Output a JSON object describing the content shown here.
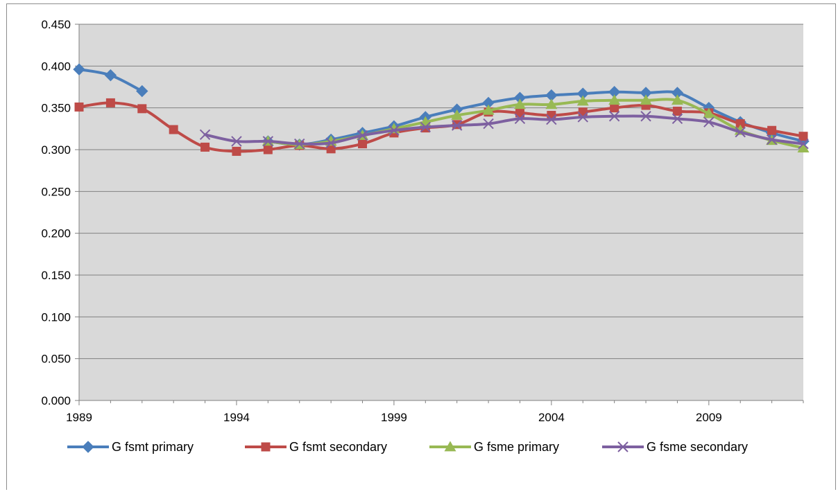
{
  "chart_data": {
    "type": "line",
    "title": "",
    "xlabel": "",
    "ylabel": "",
    "xlim": [
      1989,
      2012
    ],
    "ylim": [
      0,
      0.45
    ],
    "x_ticks": [
      "1989",
      "1994",
      "1999",
      "2004",
      "2009"
    ],
    "y_ticks": [
      "0.000",
      "0.050",
      "0.100",
      "0.150",
      "0.200",
      "0.250",
      "0.300",
      "0.350",
      "0.400",
      "0.450"
    ],
    "grid": true,
    "legend_position": "bottom",
    "plot_background": "#d9d9d9",
    "series": [
      {
        "name": "G fsmt primary",
        "color": "#4a7ebb",
        "marker": "diamond",
        "segments": [
          {
            "x": [
              1989,
              1990,
              1991
            ],
            "y": [
              0.396,
              0.389,
              0.37
            ]
          },
          {
            "x": [
              1995,
              1996,
              1997,
              1998,
              1999,
              2000,
              2001,
              2002,
              2003,
              2004,
              2005,
              2006,
              2007,
              2008,
              2009,
              2010,
              2011,
              2012
            ],
            "y": [
              0.31,
              0.306,
              0.312,
              0.32,
              0.328,
              0.339,
              0.348,
              0.356,
              0.362,
              0.365,
              0.367,
              0.369,
              0.368,
              0.368,
              0.35,
              0.333,
              0.32,
              0.31
            ]
          }
        ]
      },
      {
        "name": "G fsmt secondary",
        "color": "#be4b48",
        "marker": "square",
        "segments": [
          {
            "x": [
              1989,
              1990,
              1991,
              1992,
              1993,
              1994,
              1995,
              1996,
              1997,
              1998,
              1999,
              2000,
              2001,
              2002,
              2003,
              2004,
              2005,
              2006,
              2007,
              2008,
              2009,
              2010,
              2011,
              2012
            ],
            "y": [
              0.351,
              0.356,
              0.349,
              0.324,
              0.303,
              0.298,
              0.3,
              0.305,
              0.301,
              0.307,
              0.32,
              0.326,
              0.33,
              0.345,
              0.344,
              0.341,
              0.345,
              0.35,
              0.353,
              0.346,
              0.344,
              0.331,
              0.323,
              0.316
            ]
          }
        ]
      },
      {
        "name": "G fsme primary",
        "color": "#98b954",
        "marker": "triangle",
        "segments": [
          {
            "x": [
              1995,
              1996,
              1997,
              1998,
              1999,
              2000,
              2001,
              2002,
              2003,
              2004,
              2005,
              2006,
              2007,
              2008,
              2009,
              2010,
              2011,
              2012
            ],
            "y": [
              0.31,
              0.306,
              0.31,
              0.317,
              0.325,
              0.333,
              0.341,
              0.347,
              0.354,
              0.354,
              0.358,
              0.359,
              0.359,
              0.359,
              0.343,
              0.323,
              0.311,
              0.302
            ]
          }
        ]
      },
      {
        "name": "G fsme secondary",
        "color": "#7d60a0",
        "marker": "x",
        "segments": [
          {
            "x": [
              1993,
              1994,
              1995,
              1996,
              1997,
              1998,
              1999,
              2000,
              2001,
              2002,
              2003,
              2004,
              2005,
              2006,
              2007,
              2008,
              2009,
              2010,
              2011,
              2012
            ],
            "y": [
              0.318,
              0.31,
              0.31,
              0.307,
              0.308,
              0.317,
              0.323,
              0.327,
              0.329,
              0.331,
              0.337,
              0.336,
              0.339,
              0.34,
              0.34,
              0.337,
              0.333,
              0.321,
              0.312,
              0.307
            ]
          }
        ]
      }
    ]
  }
}
